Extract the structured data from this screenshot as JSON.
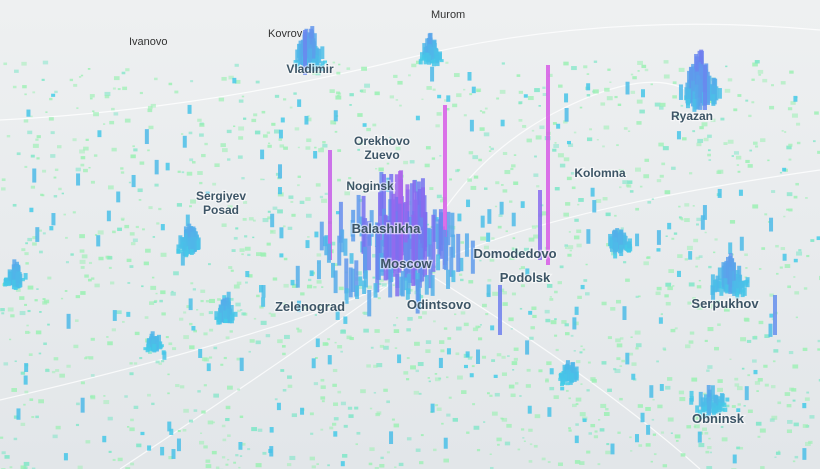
{
  "map": {
    "cities": [
      [
        "Murom"
      ],
      [
        "Ivanovo"
      ],
      [
        "Kovrov"
      ],
      [
        "Vladimir"
      ],
      [
        "Orekhovo",
        "Zuevo"
      ],
      [
        "Noginsk"
      ],
      [
        "Kolomna"
      ],
      [
        "Sergiyev",
        "Posad"
      ],
      [
        "Ryazan"
      ],
      [
        "Balashikha"
      ],
      [
        "Moscow"
      ],
      [
        "Domodedovo"
      ],
      [
        "Podolsk"
      ],
      [
        "Zelenograd"
      ],
      [
        "Odintsovo"
      ],
      [
        "Serpukhov"
      ],
      [
        "Obninsk"
      ]
    ]
  }
}
